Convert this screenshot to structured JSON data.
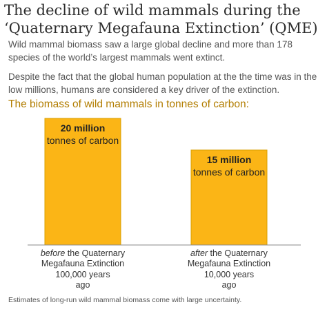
{
  "title": "The decline of wild mammals during the ‘Quaternary Megafauna Extinction’ (QME)",
  "subtitle": [
    "Wild mammal biomass saw a large global decline and more than 178 species of the world’s largest mammals went extinct.",
    "Despite the fact that the global human population at the the time was in the low millions, humans are considered a key driver of the extinction."
  ],
  "chart_data": {
    "type": "bar",
    "title": "The biomass of wild mammals in tonnes of carbon:",
    "categories": [
      "before",
      "after"
    ],
    "category_descriptions": [
      "the Quaternary Megafauna Extinction",
      "the Quaternary Megafauna Extinction"
    ],
    "category_times": [
      "100,000 years ago",
      "10,000 years ago"
    ],
    "values": [
      20000000,
      15000000
    ],
    "value_labels": [
      "20 million",
      "15 million"
    ],
    "value_label_unit": "tonnes of carbon",
    "color": "#fbb516"
  },
  "note": "Estimates of long-run wild mammal biomass come with large uncertainty."
}
